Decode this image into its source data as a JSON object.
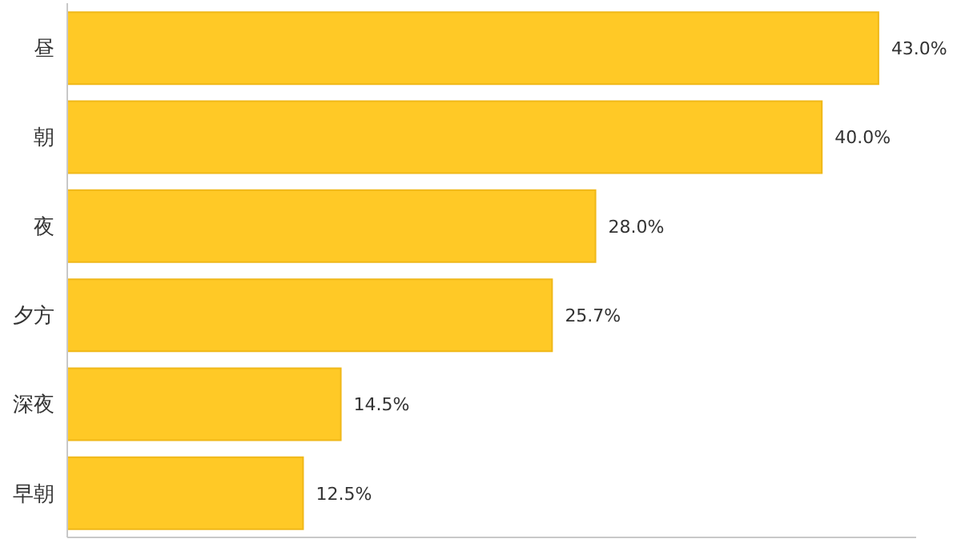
{
  "chart_data": {
    "type": "bar",
    "orientation": "horizontal",
    "categories": [
      "昼",
      "朝",
      "夜",
      "夕方",
      "深夜",
      "早朝"
    ],
    "values": [
      43.0,
      40.0,
      28.0,
      25.7,
      14.5,
      12.5
    ],
    "value_labels": [
      "43.0%",
      "40.0%",
      "28.0%",
      "25.7%",
      "14.5%",
      "12.5%"
    ],
    "color": "#ffc926",
    "xlim": [
      0,
      45
    ],
    "tick_labels": "y"
  }
}
